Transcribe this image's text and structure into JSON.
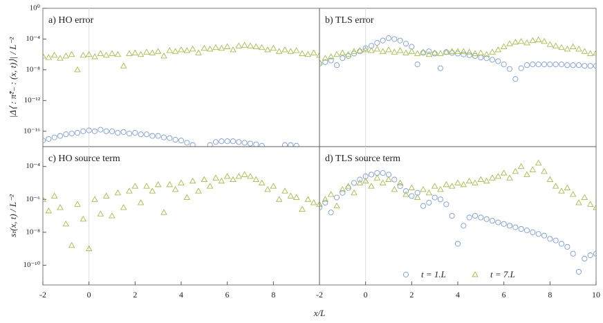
{
  "chart_data": [
    {
      "type": "scatter",
      "title": "a) HO error",
      "ylabel": "|Δ⟨ : π̂²₋ : (x, t)⟩| / L⁻²",
      "log_y": true,
      "vline": 0,
      "xlim": [
        -2,
        10
      ],
      "ylim": [
        1e-18,
        1
      ],
      "yticks": [
        {
          "value": 1,
          "label": "10⁰"
        },
        {
          "value": 0.0001,
          "label": "10⁻⁴"
        },
        {
          "value": 1e-08,
          "label": "10⁻⁸"
        },
        {
          "value": 1e-12,
          "label": "10⁻¹²"
        },
        {
          "value": 1e-16,
          "label": "10⁻¹⁶"
        }
      ],
      "x": [
        -2,
        -1.75,
        -1.5,
        -1.25,
        -1,
        -0.75,
        -0.5,
        -0.25,
        0,
        0.25,
        0.5,
        0.75,
        1,
        1.25,
        1.5,
        1.75,
        2,
        2.25,
        2.5,
        2.75,
        3,
        3.25,
        3.5,
        3.75,
        4,
        4.25,
        4.5,
        4.75,
        5,
        5.25,
        5.5,
        5.75,
        6,
        6.25,
        6.5,
        6.75,
        7,
        7.25,
        7.5,
        7.75,
        8,
        8.25,
        8.5,
        8.75,
        9,
        9.25,
        9.5,
        9.75,
        10
      ],
      "series": [
        {
          "marker": "circle",
          "color": "#7b9bd0",
          "values": [
            6.3e-18,
            1e-17,
            1.6e-17,
            2.5e-17,
            4e-17,
            5e-17,
            6.3e-17,
            1e-16,
            1.3e-16,
            1e-16,
            1.6e-16,
            1e-16,
            1e-16,
            6.3e-17,
            7.9e-17,
            5e-17,
            6.3e-17,
            4e-17,
            4e-17,
            2.5e-17,
            2.5e-17,
            1.6e-17,
            1.3e-17,
            7.9e-18,
            6.3e-18,
            3.2e-18,
            1.6e-18,
            null,
            null,
            1.6e-18,
            4e-18,
            5e-18,
            5e-18,
            5e-18,
            4e-18,
            3.2e-18,
            2.5e-18,
            2e-18,
            1.3e-18,
            null,
            null,
            null,
            1.6e-18,
            1.6e-18,
            1.3e-18,
            null,
            null,
            null,
            null
          ]
        },
        {
          "marker": "triangle",
          "color": "#a3bd4a",
          "values": [
            6.3e-07,
            4e-07,
            7.9e-07,
            3.2e-07,
            6.3e-07,
            1e-06,
            1e-08,
            7.9e-07,
            1e-06,
            5e-07,
            1.3e-06,
            7.9e-07,
            1.3e-06,
            1e-06,
            3.2e-08,
            1.3e-06,
            1.6e-06,
            1e-06,
            2e-06,
            1.6e-06,
            2.5e-06,
            6.3e-07,
            3.2e-06,
            2.5e-06,
            4e-06,
            3.2e-06,
            5e-06,
            1.6e-06,
            6.3e-06,
            5e-06,
            7.9e-06,
            6.3e-06,
            1e-05,
            4e-06,
            1.3e-05,
            1.6e-05,
            1.3e-05,
            1e-05,
            7.9e-06,
            4e-06,
            6.3e-06,
            2.5e-06,
            4e-06,
            2.5e-06,
            3.2e-06,
            1.3e-06,
            1e-06,
            1.6e-06,
            7.9e-07
          ]
        }
      ]
    },
    {
      "type": "scatter",
      "title": "b) TLS error",
      "log_y": true,
      "vline": 0,
      "xlim": [
        -2,
        10
      ],
      "ylim": [
        1e-18,
        1
      ],
      "x": [
        -2,
        -1.75,
        -1.5,
        -1.25,
        -1,
        -0.75,
        -0.5,
        -0.25,
        0,
        0.25,
        0.5,
        0.75,
        1,
        1.25,
        1.5,
        1.75,
        2,
        2.25,
        2.5,
        2.75,
        3,
        3.25,
        3.5,
        3.75,
        4,
        4.25,
        4.5,
        4.75,
        5,
        5.25,
        5.5,
        5.75,
        6,
        6.25,
        6.5,
        6.75,
        7,
        7.25,
        7.5,
        7.75,
        8,
        8.25,
        8.5,
        8.75,
        9,
        9.25,
        9.5,
        9.75,
        10
      ],
      "series": [
        {
          "marker": "circle",
          "color": "#7b9bd0",
          "values": [
            6.3e-08,
            1e-07,
            1.6e-07,
            4e-08,
            3.2e-07,
            6.3e-07,
            1.3e-06,
            2.5e-06,
            6.3e-06,
            1.3e-05,
            3.2e-05,
            6.3e-05,
            0.00013,
            0.0001,
            6.3e-05,
            2.5e-05,
            1e-05,
            5e-08,
            1.6e-06,
            2.5e-06,
            1.3e-06,
            1.6e-08,
            2e-06,
            1.6e-06,
            1.3e-06,
            1e-06,
            7.9e-07,
            6.3e-07,
            4e-07,
            3.2e-07,
            2e-07,
            1.3e-07,
            5e-08,
            1.3e-08,
            6.3e-10,
            1.6e-08,
            4e-08,
            5e-08,
            5e-08,
            5e-08,
            5e-08,
            5e-08,
            5e-08,
            4e-08,
            4e-08,
            4e-08,
            3.2e-08,
            3.2e-08,
            3.2e-08
          ]
        },
        {
          "marker": "triangle",
          "color": "#a3bd4a",
          "values": [
            1e-07,
            3.2e-07,
            5e-07,
            1e-06,
            1.6e-06,
            1e-06,
            2.5e-06,
            3.2e-06,
            4e-06,
            3.2e-06,
            5e-06,
            2.5e-06,
            4e-06,
            2e-06,
            3.2e-06,
            1.6e-06,
            2.5e-06,
            1.3e-06,
            2e-06,
            1e-06,
            1.6e-06,
            1.3e-06,
            2e-06,
            2.5e-06,
            2.5e-06,
            2.5e-06,
            2e-06,
            1.3e-06,
            1.6e-06,
            1e-06,
            2e-06,
            4e-06,
            1e-05,
            2.5e-05,
            4e-05,
            5e-05,
            3.2e-05,
            6.3e-05,
            7.9e-05,
            5e-05,
            2e-05,
            1.3e-05,
            7.9e-06,
            5e-06,
            1e-05,
            5e-06,
            2.5e-06,
            1.3e-06,
            1.6e-06
          ]
        }
      ]
    },
    {
      "type": "scatter",
      "title": "c) HO source term",
      "ylabel": "sₜ(x, t) / L⁻²",
      "xlabel": "x/L",
      "log_y": true,
      "vline": 0,
      "xlim": [
        -2,
        10
      ],
      "ylim": [
        6.3e-12,
        0.0016
      ],
      "xticks": [
        -2,
        0,
        2,
        4,
        6,
        8
      ],
      "yticks": [
        {
          "value": 0.0001,
          "label": "10⁻⁴"
        },
        {
          "value": 1e-06,
          "label": "10⁻⁶"
        },
        {
          "value": 1e-08,
          "label": "10⁻⁸"
        },
        {
          "value": 1e-10,
          "label": "10⁻¹⁰"
        }
      ],
      "x": [
        -2,
        -1.75,
        -1.5,
        -1.25,
        -1,
        -0.75,
        -0.5,
        -0.25,
        0,
        0.25,
        0.5,
        0.75,
        1,
        1.25,
        1.5,
        1.75,
        2,
        2.25,
        2.5,
        2.75,
        3,
        3.25,
        3.5,
        3.75,
        4,
        4.25,
        4.5,
        4.75,
        5,
        5.25,
        5.5,
        5.75,
        6,
        6.25,
        6.5,
        6.75,
        7,
        7.25,
        7.5,
        7.75,
        8,
        8.25,
        8.5,
        8.75,
        9,
        9.25,
        9.5,
        9.75,
        10
      ],
      "series": [
        {
          "marker": "triangle",
          "color": "#a3bd4a",
          "values": [
            1e-06,
            2e-07,
            1.6e-06,
            3.2e-07,
            3.2e-08,
            1.6e-09,
            5e-07,
            6.3e-08,
            1e-09,
            1e-06,
            1.3e-07,
            1.6e-06,
            1e-07,
            2.5e-06,
            3.2e-07,
            3.2e-06,
            6.3e-06,
            6.3e-07,
            6.3e-06,
            3.2e-06,
            7.9e-06,
            1.6e-07,
            7.9e-06,
            4e-06,
            1e-05,
            1.3e-06,
            1.3e-05,
            3.2e-06,
            1.6e-05,
            6.3e-06,
            2e-05,
            1.3e-05,
            2.5e-05,
            1.6e-05,
            2.5e-05,
            3.2e-05,
            2.5e-05,
            1.6e-05,
            1e-05,
            4e-06,
            6.3e-06,
            1e-06,
            3.2e-06,
            1.6e-06,
            1.3e-06,
            2.5e-07,
            1e-06,
            6.3e-07,
            5e-07
          ]
        }
      ]
    },
    {
      "type": "scatter",
      "title": "d) TLS source term",
      "log_y": true,
      "vline": 0,
      "legend": "lower right",
      "xlim": [
        -2,
        10
      ],
      "ylim": [
        6.3e-12,
        0.0016
      ],
      "xticks": [
        -2,
        0,
        2,
        4,
        6,
        8,
        10
      ],
      "x": [
        -2,
        -1.75,
        -1.5,
        -1.25,
        -1,
        -0.75,
        -0.5,
        -0.25,
        0,
        0.25,
        0.5,
        0.75,
        1,
        1.25,
        1.5,
        1.75,
        2,
        2.25,
        2.5,
        2.75,
        3,
        3.25,
        3.5,
        3.75,
        4,
        4.25,
        4.5,
        4.75,
        5,
        5.25,
        5.5,
        5.75,
        6,
        6.25,
        6.5,
        6.75,
        7,
        7.25,
        7.5,
        7.75,
        8,
        8.25,
        8.5,
        8.75,
        9,
        9.25,
        9.5,
        9.75,
        10
      ],
      "series": [
        {
          "name": "t = 1.L",
          "marker": "circle",
          "color": "#7b9bd0",
          "values": [
            3.2e-07,
            6.3e-07,
            1.6e-07,
            1.3e-06,
            2.5e-06,
            5e-06,
            1e-05,
            1.6e-05,
            2.5e-05,
            3.2e-05,
            4e-05,
            4e-05,
            3.2e-05,
            1.6e-05,
            6.3e-06,
            3.2e-06,
            1.6e-06,
            2.5e-06,
            4e-07,
            6.3e-07,
            1.3e-06,
            1e-06,
            5e-07,
            1e-07,
            2e-09,
            2.5e-08,
            7.9e-08,
            1e-07,
            7.9e-08,
            6.3e-08,
            5e-08,
            4e-08,
            3.2e-08,
            2.5e-08,
            2e-08,
            1.6e-08,
            1.3e-08,
            1e-08,
            7.9e-09,
            6.3e-09,
            4e-09,
            3.2e-09,
            2e-09,
            1.3e-09,
            5e-10,
            4e-11,
            2.5e-10,
            4e-10,
            5e-10
          ]
        },
        {
          "name": "t = 7.L",
          "marker": "triangle",
          "color": "#a3bd4a",
          "values": [
            5e-07,
            1e-06,
            2e-06,
            4e-07,
            4e-06,
            6.3e-06,
            2.5e-06,
            1e-05,
            1.3e-05,
            6.3e-06,
            2e-05,
            1e-05,
            1.6e-05,
            4e-06,
            1e-05,
            2e-06,
            5e-06,
            1.3e-06,
            4e-06,
            2.5e-06,
            6.3e-06,
            4e-06,
            7.9e-06,
            6.3e-06,
            1e-05,
            7.9e-06,
            1.3e-05,
            1e-05,
            1.6e-05,
            1.3e-05,
            2e-05,
            2.5e-05,
            4e-05,
            2e-05,
            5e-05,
            0.0001,
            3.2e-05,
            6.3e-05,
            0.00016,
            5e-05,
            1.6e-05,
            6.3e-06,
            3.2e-06,
            5e-06,
            2e-06,
            6.3e-07,
            1.3e-06,
            5e-07,
            3.2e-07
          ]
        }
      ]
    }
  ]
}
